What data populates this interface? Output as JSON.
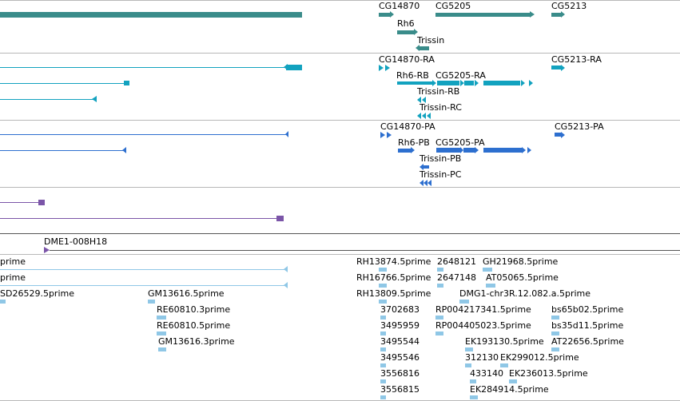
{
  "colors": {
    "gene": "#3a8c8a",
    "transcript": "#12a2bf",
    "protein": "#2d6fcf",
    "purple": "#7b55a8",
    "est": "#8fc7e6",
    "separator": "#b8b8b8"
  },
  "genes": {
    "cg14870": "CG14870",
    "cg5205": "CG5205",
    "cg5213": "CG5213",
    "rh6": "Rh6",
    "trissin": "Trissin"
  },
  "transcripts": {
    "cg14870_ra": "CG14870-RA",
    "cg5213_ra": "CG5213-RA",
    "rh6_rb": "Rh6-RB",
    "cg5205_ra": "CG5205-RA",
    "trissin_rb": "Trissin-RB",
    "trissin_rc": "Trissin-RC"
  },
  "proteins": {
    "cg14870_pa": "CG14870-PA",
    "cg5213_pa": "CG5213-PA",
    "rh6_pb": "Rh6-PB",
    "cg5205_pa": "CG5205-PA",
    "trissin_pb": "Trissin-PB",
    "trissin_pc": "Trissin-PC"
  },
  "clone": {
    "dme1": "DME1-008H18"
  },
  "ests": {
    "prime1": "prime",
    "prime2": "prime",
    "sd26529": "SD26529.5prime",
    "gm13616_5": "GM13616.5prime",
    "re60810_3": "RE60810.3prime",
    "re60810_5": "RE60810.5prime",
    "gm13616_3": "GM13616.3prime",
    "rh13874": "RH13874.5prime",
    "n2648121": "2648121",
    "gh21968": "GH21968.5prime",
    "rh16766": "RH16766.5prime",
    "n2647148": "2647148",
    "at05065": "AT05065.5prime",
    "rh13809": "RH13809.5prime",
    "dmg1": "DMG1-chr3R.12.082.a.5prime",
    "n3702683": "3702683",
    "rp004217341": "RP004217341.5prime",
    "bs65b02": "bs65b02.5prime",
    "n3495959": "3495959",
    "rp004405023": "RP004405023.5prime",
    "bs35d11": "bs35d11.5prime",
    "n3495544": "3495544",
    "ek193130": "EK193130.5prime",
    "at22656": "AT22656.5prime",
    "n3495546": "3495546",
    "n312130": "312130",
    "ek299012": "EK299012.5prime",
    "n3556816": "3556816",
    "n433140": "433140",
    "ek236013": "EK236013.5prime",
    "n3556815": "3556815",
    "ek284914": "EK284914.5prime"
  }
}
